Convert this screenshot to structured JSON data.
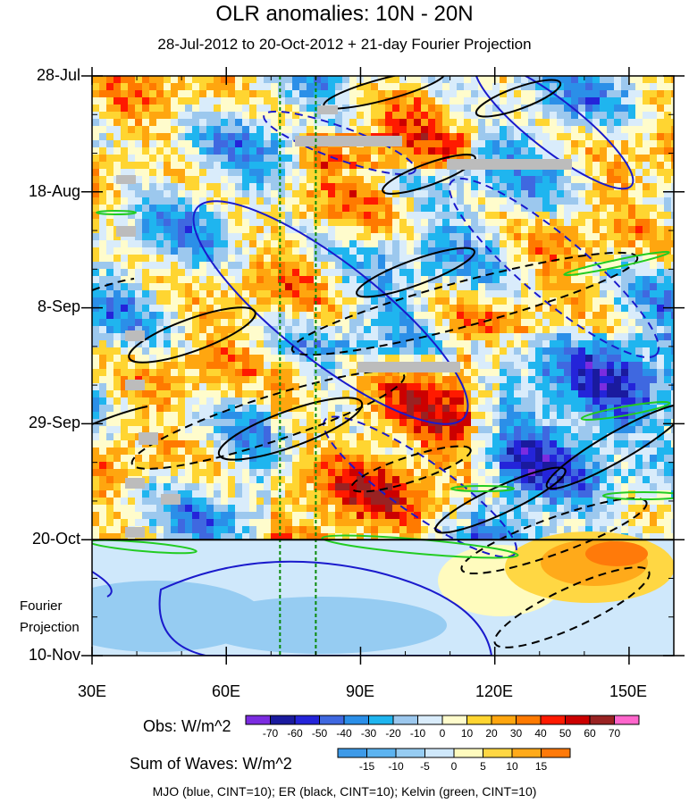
{
  "chart_data": {
    "type": "heatmap",
    "title": "OLR anomalies: 10N - 20N",
    "subtitle": "28-Jul-2012 to 20-Oct-2012 + 21-day Fourier Projection",
    "x_ticks": [
      "30E",
      "60E",
      "90E",
      "120E",
      "150E"
    ],
    "x_tick_values": [
      30,
      60,
      90,
      120,
      150
    ],
    "xlim": [
      30,
      160
    ],
    "y_ticks": [
      "28-Jul",
      "18-Aug",
      "8-Sep",
      "29-Sep",
      "20-Oct",
      "10-Nov"
    ],
    "y_tick_day_offsets": [
      0,
      21,
      42,
      63,
      84,
      105
    ],
    "observation_end": "20-Oct",
    "projection_label_line1": "Fourier",
    "projection_label_line2": "Projection",
    "reference_lines_longitude": [
      72,
      80
    ],
    "obs_colorbar": {
      "title": "Obs: W/m^2",
      "labels": [
        "-70",
        "-60",
        "-50",
        "-40",
        "-30",
        "-20",
        "-10",
        "0",
        "10",
        "20",
        "30",
        "40",
        "50",
        "60",
        "70"
      ],
      "colors": [
        "#7b2ce0",
        "#1a1a9e",
        "#2424d9",
        "#3f68e0",
        "#2b8fe8",
        "#1fb5ef",
        "#9cc8ee",
        "#d9ecfb",
        "#fffccc",
        "#ffd531",
        "#ffa60f",
        "#ff7a00",
        "#ff1a00",
        "#cc0000",
        "#992222",
        "#ff66cc"
      ]
    },
    "waves_colorbar": {
      "title": "Sum of Waves: W/m^2",
      "labels": [
        "-15",
        "-10",
        "-5",
        "0",
        "5",
        "10",
        "15"
      ],
      "colors": [
        "#3d9ae8",
        "#5cb3f0",
        "#96ccf2",
        "#cfe8fb",
        "#fffbbe",
        "#ffd743",
        "#ffaa1a",
        "#ff7a0a"
      ]
    },
    "footnote": "MJO (blue, CINT=10); ER (black, CINT=10); Kelvin (green, CINT=10)",
    "wave_colors": {
      "mjo": "#1a1acc",
      "er": "#000000",
      "kelvin": "#22cc22"
    }
  }
}
